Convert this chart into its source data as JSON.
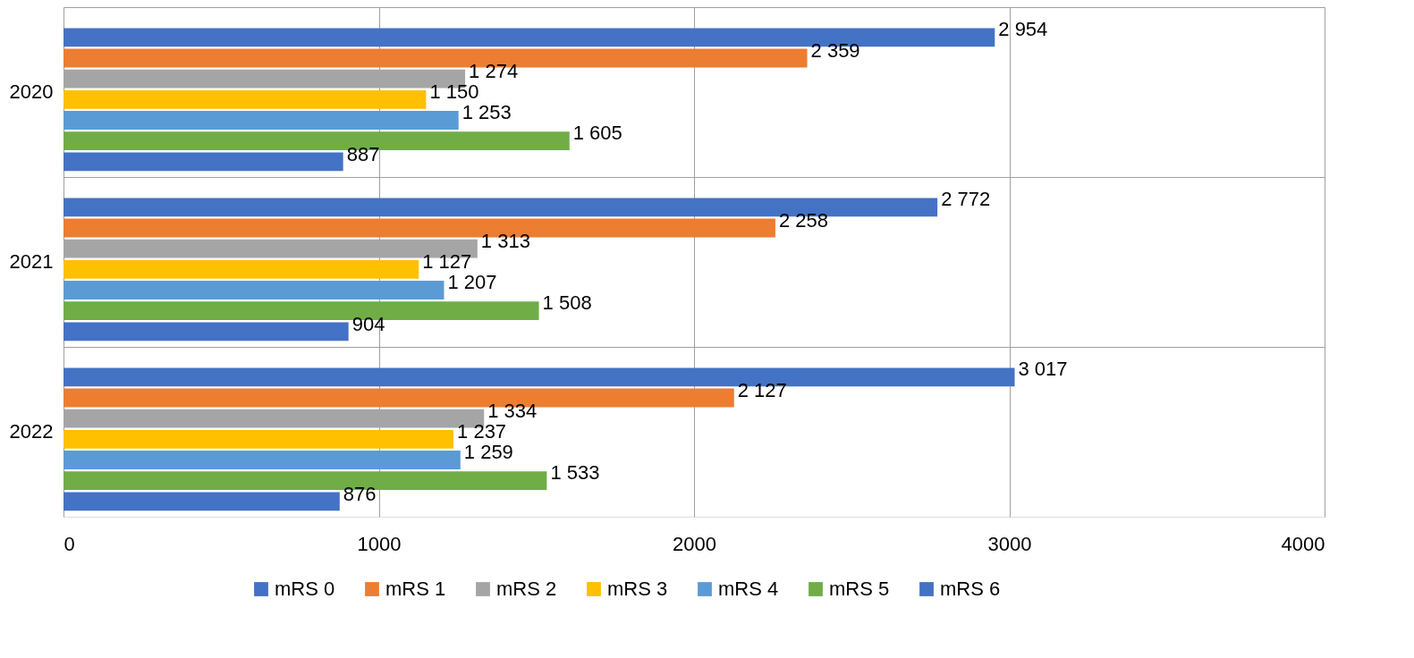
{
  "chart_data": {
    "type": "bar",
    "orientation": "horizontal",
    "categories": [
      "2020",
      "2021",
      "2022"
    ],
    "series": [
      {
        "name": "mRS 0",
        "color": "#4472c4",
        "values": [
          2954,
          2772,
          3017
        ],
        "value_labels": [
          "2 954",
          "2 772",
          "3 017"
        ]
      },
      {
        "name": "mRS 1",
        "color": "#ed7d31",
        "values": [
          2359,
          2258,
          2127
        ],
        "value_labels": [
          "2 359",
          "2 258",
          "2 127"
        ]
      },
      {
        "name": "mRS 2",
        "color": "#a5a5a5",
        "values": [
          1274,
          1313,
          1334
        ],
        "value_labels": [
          "1 274",
          "1 313",
          "1 334"
        ]
      },
      {
        "name": "mRS 3",
        "color": "#ffc000",
        "values": [
          1150,
          1127,
          1237
        ],
        "value_labels": [
          "1 150",
          "1 127",
          "1 237"
        ]
      },
      {
        "name": "mRS 4",
        "color": "#5b9bd5",
        "values": [
          1253,
          1207,
          1259
        ],
        "value_labels": [
          "1 253",
          "1 207",
          "1 259"
        ]
      },
      {
        "name": "mRS 5",
        "color": "#70ad47",
        "values": [
          1605,
          1508,
          1533
        ],
        "value_labels": [
          "1 605",
          "1 508",
          "1 533"
        ]
      },
      {
        "name": "mRS 6",
        "color": "#4472c4",
        "values": [
          887,
          904,
          876
        ],
        "value_labels": [
          "887",
          "904",
          "876"
        ]
      }
    ],
    "xlim": [
      0,
      4000
    ],
    "xticks": [
      0,
      1000,
      2000,
      3000,
      4000
    ],
    "grid": true,
    "legend": "bottom"
  }
}
